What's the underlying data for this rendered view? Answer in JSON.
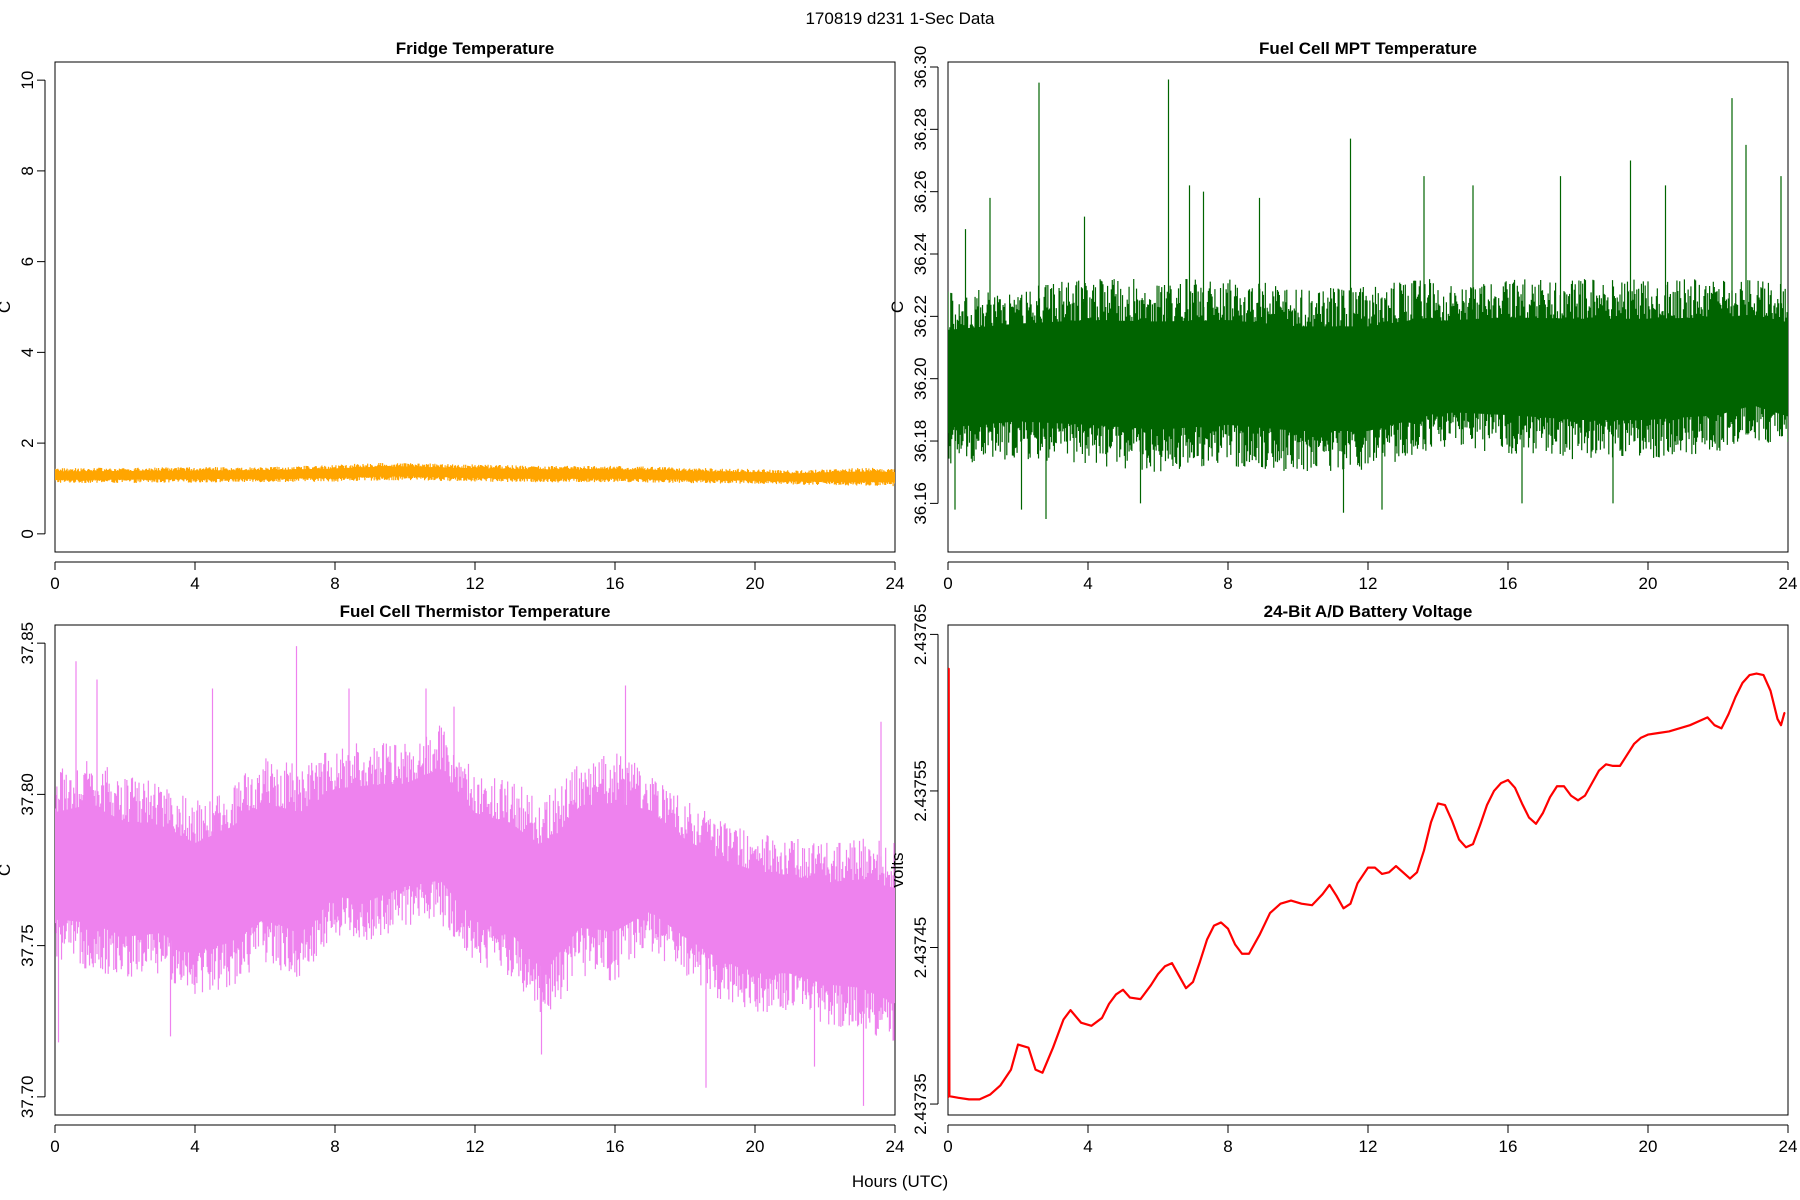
{
  "page": {
    "title": "170819   d231   1-Sec Data",
    "xlabel": "Hours (UTC)"
  },
  "chart_data": [
    {
      "type": "line",
      "title": "Fridge Temperature",
      "xlabel": "",
      "ylabel": "C",
      "color": "#FFA500",
      "xlim": [
        0,
        24
      ],
      "ylim": [
        -0.4,
        10.4
      ],
      "xticks": [
        0,
        4,
        8,
        12,
        16,
        20,
        24
      ],
      "yticks": [
        0,
        2,
        4,
        6,
        8,
        10
      ],
      "ytick_labels": [
        "0",
        "2",
        "4",
        "6",
        "8",
        "10"
      ],
      "style": "band",
      "series": [
        {
          "x": [
            0,
            2,
            4,
            6,
            8,
            9,
            10,
            12,
            14,
            16,
            18,
            20,
            21,
            22,
            23,
            24
          ],
          "y_min": [
            1.12,
            1.12,
            1.13,
            1.14,
            1.15,
            1.17,
            1.18,
            1.15,
            1.13,
            1.14,
            1.12,
            1.1,
            1.09,
            1.07,
            1.06,
            1.05
          ],
          "y_max": [
            1.45,
            1.46,
            1.47,
            1.48,
            1.52,
            1.56,
            1.57,
            1.53,
            1.5,
            1.5,
            1.46,
            1.43,
            1.4,
            1.42,
            1.46,
            1.45
          ]
        }
      ]
    },
    {
      "type": "line",
      "title": "Fuel Cell MPT Temperature",
      "xlabel": "",
      "ylabel": "C",
      "color": "#006400",
      "xlim": [
        0,
        24
      ],
      "ylim": [
        36.1444,
        36.3016
      ],
      "xticks": [
        0,
        4,
        8,
        12,
        16,
        20,
        24
      ],
      "yticks": [
        36.16,
        36.18,
        36.2,
        36.22,
        36.24,
        36.26,
        36.28,
        36.3
      ],
      "ytick_labels": [
        "36.16",
        "36.18",
        "36.20",
        "36.22",
        "36.24",
        "36.26",
        "36.28",
        "36.30"
      ],
      "style": "band",
      "series": [
        {
          "x": [
            0,
            2,
            4,
            6,
            8,
            10,
            12,
            13.8,
            14,
            16,
            18,
            20,
            22,
            23,
            24
          ],
          "y_min": [
            36.172,
            36.174,
            36.172,
            36.17,
            36.172,
            36.17,
            36.17,
            36.176,
            36.178,
            36.176,
            36.174,
            36.174,
            36.176,
            36.18,
            36.176
          ],
          "y_max": [
            36.228,
            36.23,
            36.232,
            36.232,
            36.232,
            36.23,
            36.23,
            36.232,
            36.23,
            36.232,
            36.232,
            36.232,
            36.232,
            36.232,
            36.23
          ]
        }
      ],
      "spikes": [
        {
          "x": 0.2,
          "y": 36.158
        },
        {
          "x": 0.5,
          "y": 36.248
        },
        {
          "x": 1.2,
          "y": 36.258
        },
        {
          "x": 2.1,
          "y": 36.158
        },
        {
          "x": 2.6,
          "y": 36.295
        },
        {
          "x": 2.8,
          "y": 36.155
        },
        {
          "x": 3.9,
          "y": 36.252
        },
        {
          "x": 5.5,
          "y": 36.16
        },
        {
          "x": 6.3,
          "y": 36.296
        },
        {
          "x": 6.9,
          "y": 36.262
        },
        {
          "x": 7.3,
          "y": 36.26
        },
        {
          "x": 8.9,
          "y": 36.258
        },
        {
          "x": 11.3,
          "y": 36.157
        },
        {
          "x": 11.5,
          "y": 36.277
        },
        {
          "x": 12.4,
          "y": 36.158
        },
        {
          "x": 13.6,
          "y": 36.265
        },
        {
          "x": 15.0,
          "y": 36.262
        },
        {
          "x": 16.4,
          "y": 36.16
        },
        {
          "x": 17.5,
          "y": 36.265
        },
        {
          "x": 19.0,
          "y": 36.16
        },
        {
          "x": 19.5,
          "y": 36.27
        },
        {
          "x": 20.5,
          "y": 36.262
        },
        {
          "x": 22.4,
          "y": 36.29
        },
        {
          "x": 22.8,
          "y": 36.275
        },
        {
          "x": 23.8,
          "y": 36.265
        }
      ]
    },
    {
      "type": "line",
      "title": "Fuel Cell Thermistor Temperature",
      "xlabel": "",
      "ylabel": "C",
      "color": "#EE82EE",
      "xlim": [
        0,
        24
      ],
      "ylim": [
        37.694,
        37.856
      ],
      "xticks": [
        0,
        4,
        8,
        12,
        16,
        20,
        24
      ],
      "yticks": [
        37.7,
        37.75,
        37.8,
        37.85
      ],
      "ytick_labels": [
        "37.70",
        "37.75",
        "37.80",
        "37.85"
      ],
      "style": "band",
      "series": [
        {
          "x": [
            0,
            1,
            2,
            3,
            4,
            5,
            6,
            7,
            8,
            9,
            10,
            11,
            12,
            13,
            14,
            15,
            16,
            17,
            18,
            19,
            20,
            21,
            22,
            23,
            24
          ],
          "y_min": [
            37.745,
            37.742,
            37.738,
            37.74,
            37.734,
            37.736,
            37.744,
            37.738,
            37.752,
            37.75,
            37.756,
            37.757,
            37.744,
            37.74,
            37.726,
            37.74,
            37.738,
            37.748,
            37.74,
            37.732,
            37.728,
            37.728,
            37.724,
            37.722,
            37.716
          ],
          "y_max": [
            37.808,
            37.812,
            37.806,
            37.804,
            37.798,
            37.804,
            37.812,
            37.81,
            37.816,
            37.818,
            37.817,
            37.823,
            37.808,
            37.805,
            37.798,
            37.812,
            37.814,
            37.808,
            37.798,
            37.792,
            37.788,
            37.786,
            37.784,
            37.786,
            37.784
          ]
        }
      ],
      "spikes": [
        {
          "x": 0.1,
          "y": 37.718
        },
        {
          "x": 0.6,
          "y": 37.844
        },
        {
          "x": 1.2,
          "y": 37.838
        },
        {
          "x": 3.3,
          "y": 37.72
        },
        {
          "x": 4.5,
          "y": 37.835
        },
        {
          "x": 6.9,
          "y": 37.849
        },
        {
          "x": 8.4,
          "y": 37.835
        },
        {
          "x": 10.6,
          "y": 37.835
        },
        {
          "x": 11.4,
          "y": 37.829
        },
        {
          "x": 13.9,
          "y": 37.714
        },
        {
          "x": 16.3,
          "y": 37.836
        },
        {
          "x": 18.6,
          "y": 37.703
        },
        {
          "x": 21.7,
          "y": 37.71
        },
        {
          "x": 23.1,
          "y": 37.697
        },
        {
          "x": 23.6,
          "y": 37.824
        }
      ]
    },
    {
      "type": "line",
      "title": "24-Bit A/D Battery Voltage",
      "xlabel": "",
      "ylabel": "volts",
      "color": "#FF0000",
      "xlim": [
        0,
        24
      ],
      "ylim": [
        2.437343,
        2.437656
      ],
      "xticks": [
        0,
        4,
        8,
        12,
        16,
        20,
        24
      ],
      "yticks": [
        2.43735,
        2.43745,
        2.43755,
        2.43765
      ],
      "ytick_labels": [
        "2.43735",
        "2.43745",
        "2.43755",
        "2.43765"
      ],
      "style": "line",
      "series": [
        {
          "x": [
            0,
            0.02,
            0.04,
            0.3,
            0.6,
            0.9,
            1.2,
            1.5,
            1.8,
            2.0,
            2.3,
            2.5,
            2.7,
            3.0,
            3.3,
            3.5,
            3.8,
            4.1,
            4.4,
            4.6,
            4.8,
            5.0,
            5.2,
            5.5,
            5.8,
            6.0,
            6.2,
            6.4,
            6.6,
            6.8,
            7.0,
            7.2,
            7.4,
            7.6,
            7.8,
            8.0,
            8.2,
            8.4,
            8.6,
            8.9,
            9.2,
            9.5,
            9.8,
            10.1,
            10.4,
            10.7,
            10.9,
            11.1,
            11.3,
            11.5,
            11.7,
            12.0,
            12.2,
            12.4,
            12.6,
            12.8,
            13.0,
            13.2,
            13.4,
            13.6,
            13.8,
            14.0,
            14.2,
            14.4,
            14.6,
            14.8,
            15.0,
            15.2,
            15.4,
            15.6,
            15.8,
            16.0,
            16.2,
            16.4,
            16.6,
            16.8,
            17.0,
            17.2,
            17.4,
            17.6,
            17.8,
            18.0,
            18.2,
            18.4,
            18.6,
            18.8,
            19.0,
            19.2,
            19.4,
            19.6,
            19.8,
            20.0,
            20.3,
            20.6,
            20.9,
            21.2,
            21.5,
            21.7,
            21.9,
            22.1,
            22.3,
            22.5,
            22.7,
            22.9,
            23.1,
            23.3,
            23.5,
            23.7,
            23.8,
            23.9
          ],
          "y": [
            2.437354,
            2.437628,
            2.437355,
            2.437354,
            2.437353,
            2.437353,
            2.437356,
            2.437362,
            2.437372,
            2.437388,
            2.437386,
            2.437372,
            2.43737,
            2.437386,
            2.437404,
            2.43741,
            2.437402,
            2.4374,
            2.437405,
            2.437414,
            2.43742,
            2.437423,
            2.437418,
            2.437417,
            2.437426,
            2.437433,
            2.437438,
            2.43744,
            2.437432,
            2.437424,
            2.437428,
            2.437441,
            2.437455,
            2.437464,
            2.437466,
            2.437462,
            2.437452,
            2.437446,
            2.437446,
            2.437458,
            2.437472,
            2.437478,
            2.43748,
            2.437478,
            2.437477,
            2.437484,
            2.43749,
            2.437483,
            2.437475,
            2.437478,
            2.437491,
            2.437501,
            2.437501,
            2.437497,
            2.437498,
            2.437502,
            2.437498,
            2.437494,
            2.437498,
            2.437512,
            2.43753,
            2.437542,
            2.437541,
            2.437531,
            2.437519,
            2.437514,
            2.437516,
            2.437528,
            2.437541,
            2.43755,
            2.437555,
            2.437557,
            2.437552,
            2.437542,
            2.437533,
            2.437529,
            2.437536,
            2.437546,
            2.437553,
            2.437553,
            2.437547,
            2.437544,
            2.437547,
            2.437555,
            2.437563,
            2.437567,
            2.437566,
            2.437566,
            2.437573,
            2.43758,
            2.437584,
            2.437586,
            2.437587,
            2.437588,
            2.43759,
            2.437592,
            2.437595,
            2.437597,
            2.437592,
            2.43759,
            2.437599,
            2.43761,
            2.437619,
            2.437624,
            2.437625,
            2.437624,
            2.437614,
            2.437596,
            2.437592,
            2.4376
          ]
        }
      ]
    }
  ]
}
